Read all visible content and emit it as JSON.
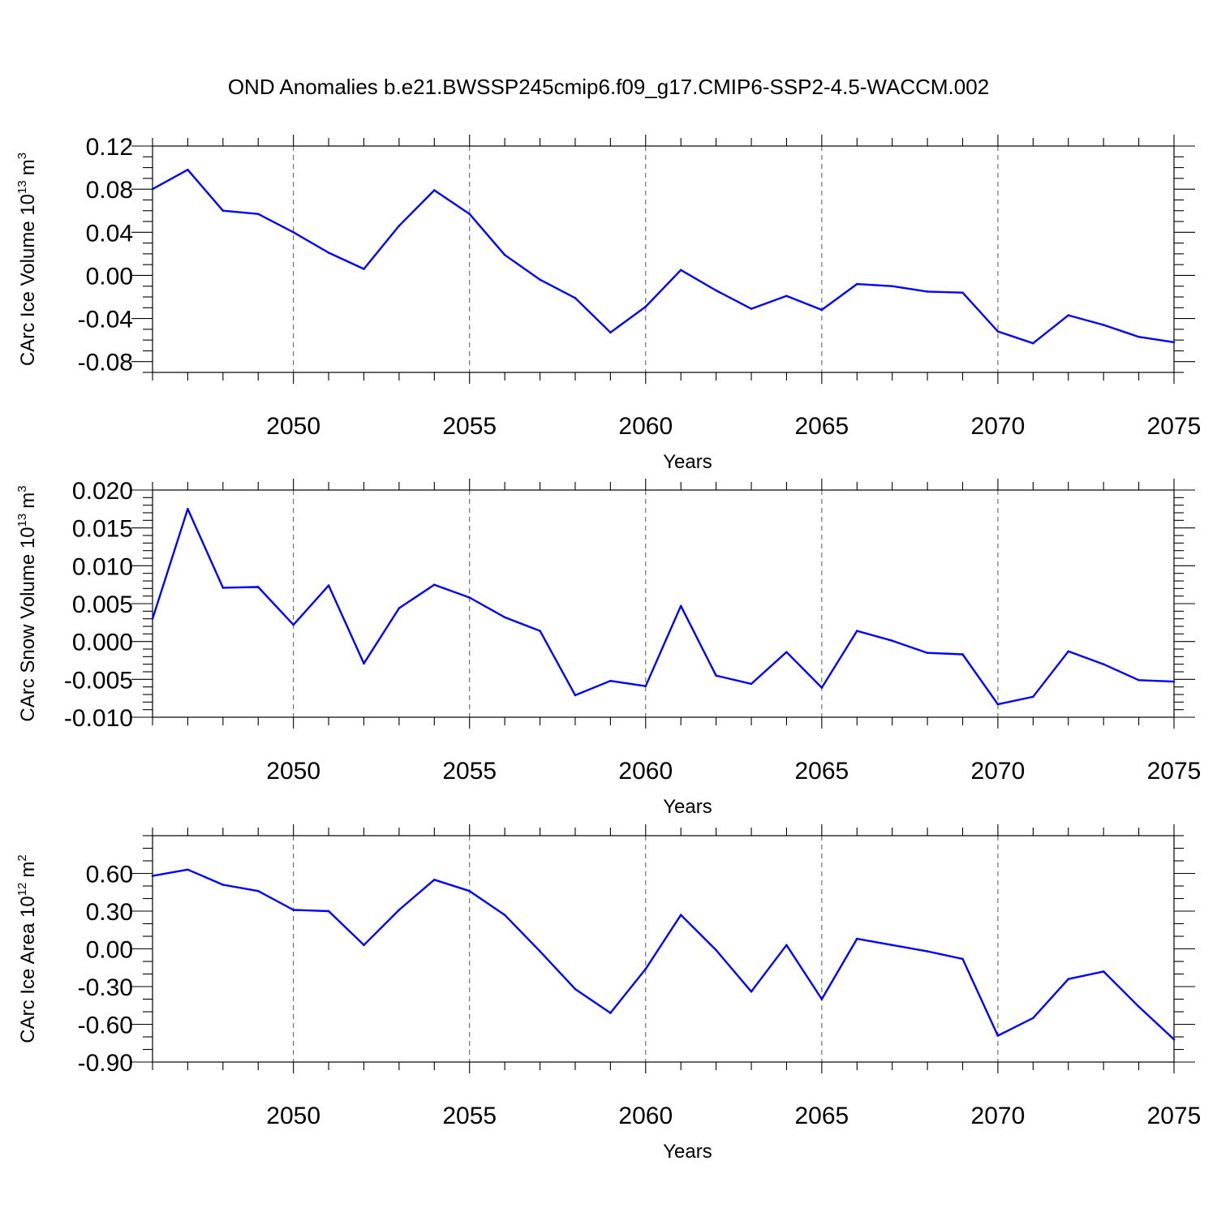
{
  "figure": {
    "title": "OND Anomalies b.e21.BWSSP245cmip6.f09_g17.CMIP6-SSP2-4.5-WACCM.002"
  },
  "chart_data": [
    {
      "type": "line",
      "xlabel": "Years",
      "ylabel_text": "CArc Ice Volume 10",
      "ylabel_exp": "13",
      "ylabel_unit": "m",
      "ylabel_unit_exp": "3",
      "xlim": [
        2046,
        2075
      ],
      "ylim": [
        -0.09,
        0.12
      ],
      "xticks": [
        2050,
        2055,
        2060,
        2065,
        2070,
        2075
      ],
      "xtick_labels": [
        "2050",
        "2055",
        "2060",
        "2065",
        "2070",
        "2075"
      ],
      "yticks": [
        -0.08,
        -0.04,
        0.0,
        0.04,
        0.08,
        0.12
      ],
      "ytick_labels": [
        "-0.08",
        "-0.04",
        "0.00",
        "0.04",
        "0.08",
        "0.12"
      ],
      "yminor_step": 0.01,
      "grid": "vertical-dashed",
      "color": "#0000ff",
      "x": [
        2046,
        2047,
        2048,
        2049,
        2050,
        2051,
        2052,
        2053,
        2054,
        2055,
        2056,
        2057,
        2058,
        2059,
        2060,
        2061,
        2062,
        2063,
        2064,
        2065,
        2066,
        2067,
        2068,
        2069,
        2070,
        2071,
        2072,
        2073,
        2074,
        2075
      ],
      "values": [
        0.08,
        0.098,
        0.06,
        0.057,
        0.04,
        0.021,
        0.006,
        0.046,
        0.079,
        0.057,
        0.019,
        -0.004,
        -0.021,
        -0.053,
        -0.029,
        0.005,
        -0.014,
        -0.031,
        -0.019,
        -0.032,
        -0.008,
        -0.01,
        -0.015,
        -0.016,
        -0.052,
        -0.063,
        -0.037,
        -0.046,
        -0.057,
        -0.062
      ]
    },
    {
      "type": "line",
      "xlabel": "Years",
      "ylabel_text": "CArc Snow Volume 10",
      "ylabel_exp": "13",
      "ylabel_unit": "m",
      "ylabel_unit_exp": "3",
      "xlim": [
        2046,
        2075
      ],
      "ylim": [
        -0.01,
        0.02
      ],
      "xticks": [
        2050,
        2055,
        2060,
        2065,
        2070,
        2075
      ],
      "xtick_labels": [
        "2050",
        "2055",
        "2060",
        "2065",
        "2070",
        "2075"
      ],
      "yticks": [
        -0.01,
        -0.005,
        0.0,
        0.005,
        0.01,
        0.015,
        0.02
      ],
      "ytick_labels": [
        "-0.010",
        "-0.005",
        "0.000",
        "0.005",
        "0.010",
        "0.015",
        "0.020"
      ],
      "yminor_step": 0.001,
      "grid": "vertical-dashed",
      "color": "#0000ff",
      "x": [
        2046,
        2047,
        2048,
        2049,
        2050,
        2051,
        2052,
        2053,
        2054,
        2055,
        2056,
        2057,
        2058,
        2059,
        2060,
        2061,
        2062,
        2063,
        2064,
        2065,
        2066,
        2067,
        2068,
        2069,
        2070,
        2071,
        2072,
        2073,
        2074,
        2075
      ],
      "values": [
        0.003,
        0.0175,
        0.0071,
        0.0072,
        0.0022,
        0.0074,
        -0.0029,
        0.0044,
        0.0075,
        0.0058,
        0.0032,
        0.0014,
        -0.0071,
        -0.0052,
        -0.0059,
        0.0047,
        -0.0045,
        -0.0056,
        -0.0014,
        -0.0061,
        0.0014,
        0.0001,
        -0.0015,
        -0.0017,
        -0.0083,
        -0.0073,
        -0.0013,
        -0.003,
        -0.0051,
        -0.0053
      ]
    },
    {
      "type": "line",
      "xlabel": "Years",
      "ylabel_text": "CArc Ice Area 10",
      "ylabel_exp": "12",
      "ylabel_unit": "m",
      "ylabel_unit_exp": "2",
      "xlim": [
        2046,
        2075
      ],
      "ylim": [
        -0.9,
        0.9
      ],
      "xticks": [
        2050,
        2055,
        2060,
        2065,
        2070,
        2075
      ],
      "xtick_labels": [
        "2050",
        "2055",
        "2060",
        "2065",
        "2070",
        "2075"
      ],
      "yticks": [
        -0.9,
        -0.6,
        -0.3,
        0.0,
        0.3,
        0.6
      ],
      "ytick_labels": [
        "-0.90",
        "-0.60",
        "-0.30",
        "0.00",
        "0.30",
        "0.60"
      ],
      "yminor_step": 0.1,
      "grid": "vertical-dashed",
      "color": "#0000ff",
      "x": [
        2046,
        2047,
        2048,
        2049,
        2050,
        2051,
        2052,
        2053,
        2054,
        2055,
        2056,
        2057,
        2058,
        2059,
        2060,
        2061,
        2062,
        2063,
        2064,
        2065,
        2066,
        2067,
        2068,
        2069,
        2070,
        2071,
        2072,
        2073,
        2074,
        2075
      ],
      "values": [
        0.58,
        0.63,
        0.51,
        0.46,
        0.31,
        0.3,
        0.03,
        0.31,
        0.55,
        0.46,
        0.27,
        -0.02,
        -0.32,
        -0.51,
        -0.16,
        0.27,
        -0.01,
        -0.34,
        0.03,
        -0.4,
        0.08,
        0.03,
        -0.02,
        -0.08,
        -0.69,
        -0.55,
        -0.24,
        -0.18,
        -0.46,
        -0.72
      ]
    }
  ]
}
